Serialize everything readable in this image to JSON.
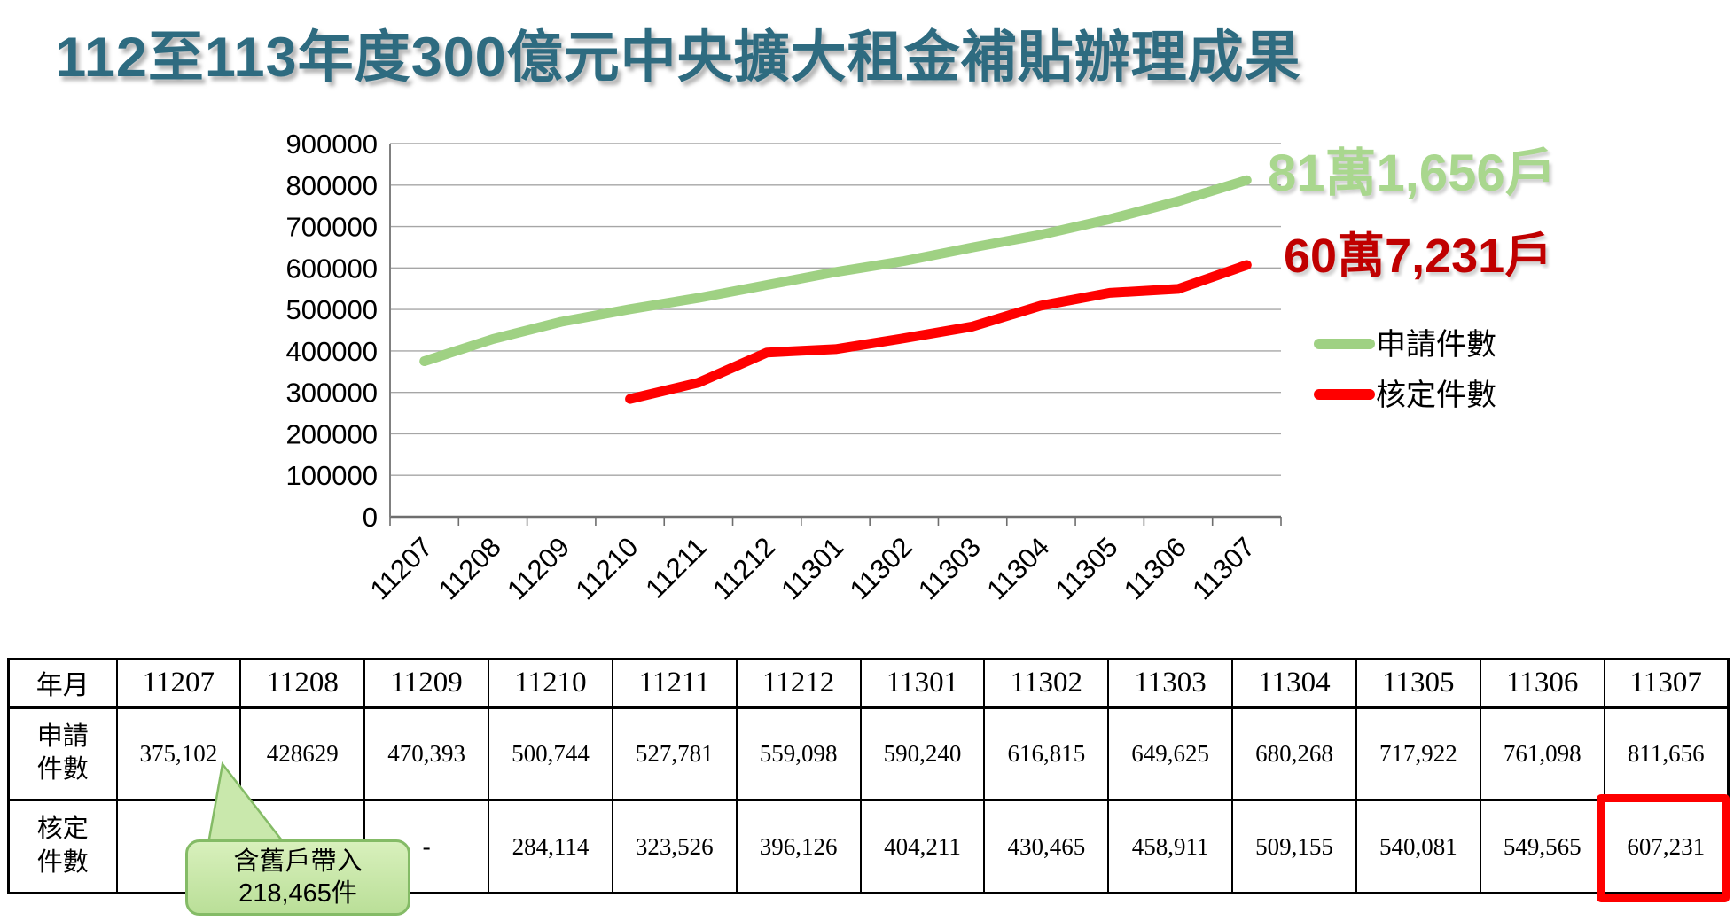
{
  "title": "112至113年度300億元中央擴大租金補貼辦理成果",
  "chart_data": {
    "type": "line",
    "categories": [
      "11207",
      "11208",
      "11209",
      "11210",
      "11211",
      "11212",
      "11301",
      "11302",
      "11303",
      "11304",
      "11305",
      "11306",
      "11307"
    ],
    "series": [
      {
        "id": "applications",
        "name": "申請件數",
        "color": "#9FD183",
        "values": [
          375102,
          428629,
          470393,
          500744,
          527781,
          559098,
          590240,
          616815,
          649625,
          680268,
          717922,
          761098,
          811656
        ]
      },
      {
        "id": "approvals",
        "name": "核定件數",
        "color": "#FF0000",
        "values": [
          null,
          null,
          null,
          284114,
          323526,
          396126,
          404211,
          430465,
          458911,
          509155,
          540081,
          549565,
          607231
        ]
      }
    ],
    "ylim": [
      0,
      900000
    ],
    "ytick_step": 100000,
    "grid": true,
    "legend_position": "right",
    "annotations": [
      {
        "text": "81萬1,656戶",
        "series": "申請件數",
        "color": "#A9D78E"
      },
      {
        "text": "60萬7,231戶",
        "series": "核定件數",
        "color": "#C00000"
      }
    ]
  },
  "table": {
    "header": [
      "年月",
      "11207",
      "11208",
      "11209",
      "11210",
      "11211",
      "11212",
      "11301",
      "11302",
      "11303",
      "11304",
      "11305",
      "11306",
      "11307"
    ],
    "rows": [
      {
        "label": "申請\n件數",
        "cells": [
          "375,102",
          "428629",
          "470,393",
          "500,744",
          "527,781",
          "559,098",
          "590,240",
          "616,815",
          "649,625",
          "680,268",
          "717,922",
          "761,098",
          "811,656"
        ]
      },
      {
        "label": "核定\n件數",
        "cells": [
          "",
          "",
          "-",
          "284,114",
          "323,526",
          "396,126",
          "404,211",
          "430,465",
          "458,911",
          "509,155",
          "540,081",
          "549,565",
          "607,231"
        ]
      }
    ],
    "highlighted_cell": {
      "row": "核定件數",
      "column": "11307",
      "value": "607,231"
    }
  },
  "callout": {
    "line1": "含舊戶帶入",
    "line2": "218,465件"
  },
  "colors": {
    "title": "#2E6B80",
    "applications_line": "#9FD183",
    "approvals_line": "#FF0000",
    "applications_annotation": "#A9D78E",
    "approvals_annotation": "#C00000",
    "gridline": "#A6A6A6",
    "axis": "#808080",
    "callout_fill": "#C9E8AC",
    "callout_border": "#84BB66",
    "highlight_border": "#FE0000"
  }
}
